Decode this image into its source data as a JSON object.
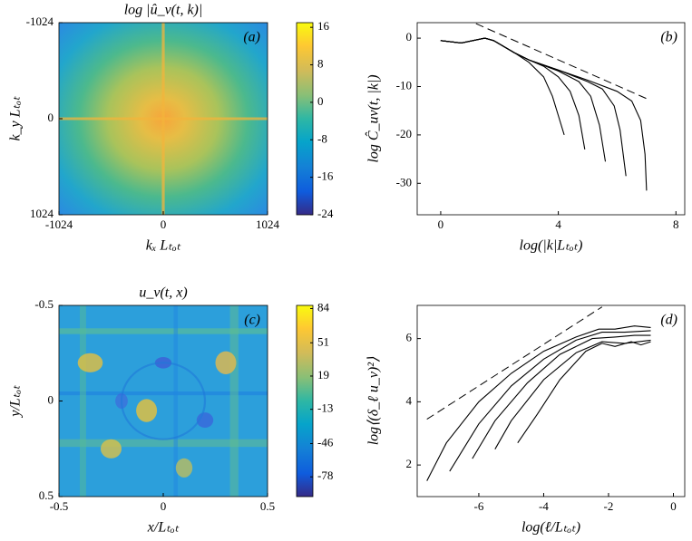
{
  "chart_data": [
    {
      "type": "heatmap",
      "title": "log |û_ν(t, k)|",
      "panel_label": "(a)",
      "x_label": "kₓ Lₜₒₜ",
      "y_label": "k_y Lₜₒₜ",
      "xlim": [
        -1024,
        1024
      ],
      "xticks": [
        -1024,
        0,
        1024
      ],
      "ylim": [
        1024,
        -1024
      ],
      "yticks": [
        -1024,
        0,
        1024
      ],
      "clim": [
        -24,
        17
      ],
      "cticks": [
        -24,
        -16,
        -8,
        0,
        8,
        16
      ]
    },
    {
      "type": "line",
      "panel_label": "(b)",
      "x_label": "log(|k|Lₜₒₜ)",
      "y_label": "log Ĉ_uν(t, |k|)",
      "xlim": [
        -0.8,
        8.3
      ],
      "xticks": [
        0,
        4,
        8
      ],
      "ylim": [
        -36.5,
        3.2
      ],
      "yticks": [
        -30,
        -20,
        -10,
        0
      ],
      "series": [
        {
          "color": "#000000",
          "dash": true,
          "x": [
            1.2,
            7
          ],
          "values": [
            3,
            -12.5
          ]
        },
        {
          "color": "#000000",
          "x": [
            0,
            0.7,
            1.5,
            1.8,
            2.5,
            3,
            3.5,
            3.8,
            4,
            4.2
          ],
          "values": [
            -0.5,
            -1,
            0,
            -0.5,
            -3,
            -5,
            -8,
            -12,
            -16,
            -20
          ]
        },
        {
          "color": "#000000",
          "x": [
            0,
            0.7,
            1.5,
            1.8,
            2.5,
            3,
            3.5,
            4,
            4.4,
            4.7,
            4.9
          ],
          "values": [
            -0.5,
            -1,
            0,
            -0.5,
            -3,
            -4.5,
            -5.8,
            -8,
            -11,
            -16,
            -23
          ]
        },
        {
          "color": "#000000",
          "x": [
            0,
            0.7,
            1.5,
            1.8,
            2.5,
            3,
            4,
            4.7,
            5.1,
            5.4,
            5.6
          ],
          "values": [
            -0.5,
            -1,
            0,
            -0.5,
            -3,
            -4.5,
            -6.8,
            -9,
            -12,
            -18,
            -25.5
          ]
        },
        {
          "color": "#000000",
          "x": [
            0,
            0.7,
            1.5,
            1.8,
            2.5,
            3,
            4,
            5,
            5.5,
            5.9,
            6.1,
            6.3
          ],
          "values": [
            -0.5,
            -1,
            0,
            -0.5,
            -3,
            -4.5,
            -6.6,
            -9,
            -10.5,
            -14,
            -19,
            -28.5
          ]
        },
        {
          "color": "#000000",
          "x": [
            0,
            0.7,
            1.5,
            1.8,
            2.5,
            3,
            4,
            5,
            6,
            6.5,
            6.8,
            6.95,
            7
          ],
          "values": [
            -0.5,
            -1,
            0,
            -0.5,
            -3,
            -4.5,
            -6.6,
            -8.7,
            -11,
            -13,
            -17,
            -24,
            -31.5
          ]
        }
      ]
    },
    {
      "type": "heatmap",
      "title": "u_ν(t, x)",
      "panel_label": "(c)",
      "x_label": "x/Lₜₒₜ",
      "y_label": "y/Lₜₒₜ",
      "xlim": [
        -0.5,
        0.5
      ],
      "xticks": [
        -0.5,
        0,
        0.5
      ],
      "ylim": [
        0.5,
        -0.5
      ],
      "yticks": [
        -0.5,
        0,
        0.5
      ],
      "clim": [
        -97,
        87
      ],
      "cticks": [
        -78,
        -46,
        -13,
        19,
        51,
        84
      ]
    },
    {
      "type": "line",
      "panel_label": "(d)",
      "x_label": "log(ℓ/Lₜₒₜ)",
      "y_label": "log⟨(δ_ℓ u_ν)²⟩",
      "xlim": [
        -7.9,
        0.35
      ],
      "xticks": [
        -6,
        -4,
        -2,
        0
      ],
      "ylim": [
        1,
        7.05
      ],
      "yticks": [
        2,
        4,
        6
      ],
      "series": [
        {
          "color": "#000000",
          "dash": true,
          "x": [
            -7.6,
            -2.2
          ],
          "values": [
            3.45,
            7
          ]
        },
        {
          "color": "#000000",
          "x": [
            -7.6,
            -7,
            -6,
            -5,
            -4,
            -3,
            -2.3,
            -1.8,
            -1.2,
            -0.7
          ],
          "values": [
            1.5,
            2.7,
            4,
            4.9,
            5.6,
            6.05,
            6.3,
            6.3,
            6.4,
            6.35
          ]
        },
        {
          "color": "#000000",
          "x": [
            -6.9,
            -6,
            -5,
            -4,
            -3,
            -2.2,
            -1.5,
            -0.7
          ],
          "values": [
            1.8,
            3.3,
            4.5,
            5.35,
            5.95,
            6.2,
            6.2,
            6.25
          ]
        },
        {
          "color": "#000000",
          "x": [
            -6.2,
            -5.5,
            -4.5,
            -3.5,
            -2.5,
            -1.8,
            -1.2,
            -0.7
          ],
          "values": [
            2.2,
            3.4,
            4.6,
            5.5,
            6,
            6.05,
            6.1,
            6.1
          ]
        },
        {
          "color": "#000000",
          "x": [
            -5.5,
            -5,
            -4,
            -3,
            -2.2,
            -1.5,
            -0.7
          ],
          "values": [
            2.5,
            3.4,
            4.7,
            5.55,
            5.9,
            5.85,
            5.95
          ]
        },
        {
          "color": "#000000",
          "x": [
            -4.8,
            -4.2,
            -3.5,
            -2.7,
            -2.2,
            -1.8,
            -1.3,
            -1,
            -0.7
          ],
          "values": [
            2.7,
            3.6,
            4.7,
            5.6,
            5.85,
            5.75,
            5.9,
            5.8,
            5.9
          ]
        }
      ]
    }
  ]
}
